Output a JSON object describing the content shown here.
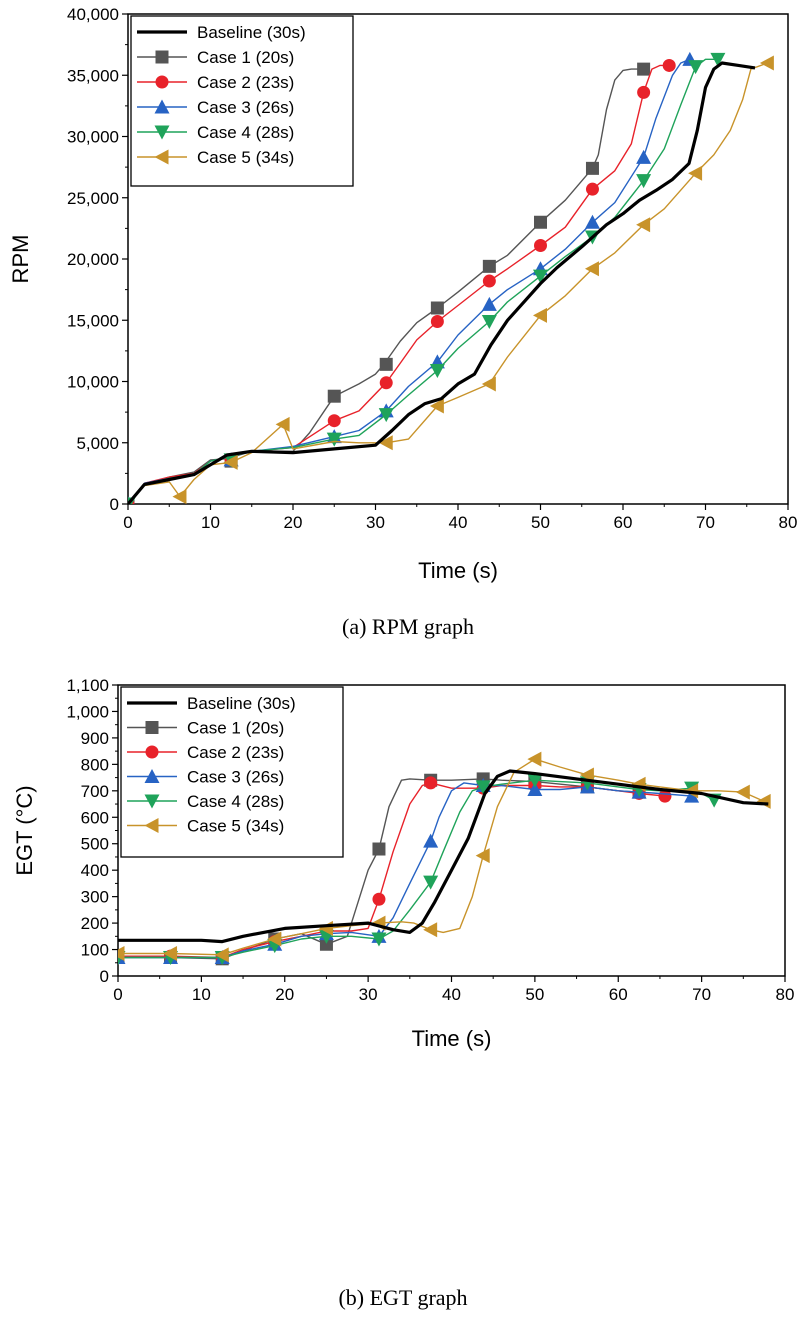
{
  "captions": [
    "(a)  RPM  graph",
    "(b)  EGT  graph"
  ],
  "chart_data": [
    {
      "type": "line",
      "xlabel": "Time (s)",
      "ylabel": "RPM",
      "xlim": [
        0,
        80
      ],
      "ylim": [
        0,
        40000
      ],
      "xticks": [
        0,
        10,
        20,
        30,
        40,
        50,
        60,
        70,
        80
      ],
      "xtick_labels": [
        "0",
        "10",
        "20",
        "30",
        "40",
        "50",
        "60",
        "70",
        "80"
      ],
      "yticks": [
        0,
        5000,
        10000,
        15000,
        20000,
        25000,
        30000,
        35000,
        40000
      ],
      "ytick_labels": [
        "0",
        "5,000",
        "10,000",
        "15,000",
        "20,000",
        "25,000",
        "30,000",
        "35,000",
        "40,000"
      ],
      "grid": false,
      "legend_position": "top-left",
      "series": [
        {
          "name": "Baseline (30s)",
          "color": "#000000",
          "marker": "none",
          "x": [
            0,
            2,
            5,
            8,
            10,
            12,
            15,
            20,
            25,
            30,
            32,
            34,
            36,
            38,
            40,
            42,
            44,
            46,
            48,
            50,
            52,
            55,
            58,
            60,
            62,
            64,
            66,
            68,
            69,
            70,
            71,
            72,
            74,
            76
          ],
          "y": [
            0,
            1600,
            2000,
            2400,
            3200,
            4000,
            4300,
            4200,
            4500,
            4800,
            6000,
            7300,
            8200,
            8600,
            9800,
            10600,
            13000,
            15000,
            16500,
            18000,
            19300,
            21000,
            22800,
            23700,
            24800,
            25600,
            26500,
            27800,
            30500,
            34000,
            35500,
            36000,
            35800,
            35600
          ]
        },
        {
          "name": "Case 1 (20s)",
          "color": "#555555",
          "marker": "square",
          "x": [
            0,
            2,
            5,
            8,
            10,
            12,
            15,
            20,
            22,
            25,
            28,
            30,
            31,
            33,
            35,
            37.5,
            40,
            43.8,
            46,
            50,
            53,
            56.3,
            57,
            58,
            59,
            60,
            61,
            62.5
          ],
          "y": [
            0,
            1600,
            2200,
            2600,
            3600,
            3700,
            4300,
            4300,
            5800,
            8800,
            9800,
            10600,
            11400,
            13300,
            14800,
            16000,
            17300,
            19400,
            20300,
            23000,
            24800,
            27400,
            28500,
            32200,
            34600,
            35400,
            35500,
            35500
          ],
          "marker_x": [
            0,
            12.5,
            25,
            31.3,
            37.5,
            43.8,
            50,
            56.3,
            62.5
          ],
          "marker_y": [
            0,
            3500,
            8800,
            11400,
            16000,
            19400,
            23000,
            27400,
            35500
          ]
        },
        {
          "name": "Case 2 (23s)",
          "color": "#e8222a",
          "marker": "circle",
          "x": [
            0,
            2,
            5,
            8,
            10,
            12,
            15,
            20,
            25,
            28,
            31.3,
            33,
            35,
            37.5,
            40,
            43.8,
            46,
            50,
            53,
            56.3,
            59,
            61,
            62.5,
            63.5,
            64.5,
            65.6
          ],
          "y": [
            0,
            1700,
            2200,
            2500,
            3500,
            3800,
            4300,
            4600,
            6800,
            7600,
            9900,
            11500,
            13400,
            14900,
            16200,
            18200,
            19200,
            21100,
            22600,
            25700,
            27200,
            29400,
            33600,
            35500,
            35800,
            35800
          ],
          "marker_x": [
            0,
            12.5,
            25,
            31.3,
            37.5,
            43.8,
            50,
            56.3,
            62.5,
            65.6
          ],
          "marker_y": [
            0,
            3600,
            6800,
            9900,
            14900,
            18200,
            21100,
            25700,
            33600,
            35800
          ]
        },
        {
          "name": "Case 3 (26s)",
          "color": "#2763c4",
          "marker": "triangle-up",
          "x": [
            0,
            2,
            5,
            8,
            10,
            12,
            15,
            20,
            25,
            28,
            31.3,
            34,
            37.5,
            40,
            43.8,
            46,
            50,
            53,
            56.3,
            59,
            62.5,
            64,
            66,
            67,
            68.1
          ],
          "y": [
            0,
            1700,
            2100,
            2400,
            3500,
            3800,
            4300,
            4700,
            5500,
            6000,
            7600,
            9600,
            11600,
            13800,
            16300,
            17500,
            19200,
            20800,
            23000,
            24600,
            28300,
            31500,
            35000,
            36000,
            36300
          ],
          "marker_x": [
            0,
            12.5,
            25,
            31.3,
            37.5,
            43.8,
            50,
            56.3,
            62.5,
            68.1
          ],
          "marker_y": [
            0,
            3600,
            5500,
            7600,
            11600,
            16300,
            19200,
            23000,
            28300,
            36300
          ]
        },
        {
          "name": "Case 4 (28s)",
          "color": "#1fa35a",
          "marker": "triangle-down",
          "x": [
            0,
            2,
            5,
            8,
            10,
            12,
            15,
            20,
            25,
            28,
            31.3,
            34,
            37.5,
            40,
            43.8,
            46,
            50,
            53,
            56.3,
            59,
            62.5,
            65,
            67,
            68.8,
            70,
            71.5
          ],
          "y": [
            0,
            1600,
            2100,
            2400,
            3500,
            3800,
            4300,
            4600,
            5300,
            5600,
            7300,
            8900,
            10900,
            12700,
            14900,
            16500,
            18600,
            20200,
            21800,
            23400,
            26400,
            29000,
            32600,
            35700,
            36300,
            36300
          ],
          "marker_x": [
            0,
            12.5,
            25,
            31.3,
            37.5,
            43.8,
            50,
            56.3,
            62.5,
            68.8,
            71.5
          ],
          "marker_y": [
            0,
            3600,
            5300,
            7300,
            10900,
            14900,
            18600,
            21800,
            26400,
            35700,
            36300
          ]
        },
        {
          "name": "Case 5 (34s)",
          "color": "#c8932a",
          "marker": "triangle-left",
          "x": [
            0,
            2,
            5,
            6.3,
            8,
            10,
            12.5,
            15,
            18.8,
            20,
            25,
            28,
            31.3,
            34,
            37.5,
            40,
            43.8,
            46,
            50,
            53,
            56.3,
            59,
            62.5,
            65,
            68.8,
            71,
            73,
            74.5,
            75.5,
            77.5
          ],
          "y": [
            0,
            1500,
            1800,
            600,
            2000,
            3200,
            3400,
            4200,
            6500,
            4500,
            5100,
            5000,
            5000,
            5300,
            8000,
            8700,
            9800,
            12000,
            15400,
            17000,
            19200,
            20500,
            22800,
            24100,
            27000,
            28500,
            30500,
            33000,
            35500,
            36000
          ],
          "marker_x": [
            6.3,
            12.5,
            18.8,
            31.3,
            37.5,
            43.8,
            50,
            56.3,
            62.5,
            68.8,
            77.5
          ],
          "marker_y": [
            600,
            3400,
            6500,
            5000,
            8000,
            9800,
            15400,
            19200,
            22800,
            27000,
            36000
          ]
        }
      ]
    },
    {
      "type": "line",
      "xlabel": "Time (s)",
      "ylabel": "EGT (°C)",
      "xlim": [
        0,
        80
      ],
      "ylim": [
        0,
        1100
      ],
      "xticks": [
        0,
        10,
        20,
        30,
        40,
        50,
        60,
        70,
        80
      ],
      "xtick_labels": [
        "0",
        "10",
        "20",
        "30",
        "40",
        "50",
        "60",
        "70",
        "80"
      ],
      "yticks": [
        0,
        100,
        200,
        300,
        400,
        500,
        600,
        700,
        800,
        900,
        1000,
        1100
      ],
      "ytick_labels": [
        "0",
        "100",
        "200",
        "300",
        "400",
        "500",
        "600",
        "700",
        "800",
        "900",
        "1,000",
        "1,100"
      ],
      "grid": false,
      "legend_position": "top-left",
      "series": [
        {
          "name": "Baseline (30s)",
          "color": "#000000",
          "marker": "none",
          "x": [
            0,
            5,
            10,
            12.5,
            15,
            20,
            25,
            30,
            33,
            35,
            36.5,
            38,
            40,
            42,
            44,
            45.5,
            47,
            50,
            55,
            60,
            65,
            70,
            75,
            78
          ],
          "y": [
            135,
            135,
            135,
            130,
            150,
            180,
            190,
            200,
            175,
            165,
            200,
            280,
            400,
            520,
            690,
            755,
            775,
            765,
            745,
            725,
            705,
            690,
            655,
            650
          ]
        },
        {
          "name": "Case 1 (20s)",
          "color": "#555555",
          "marker": "square",
          "x": [
            0,
            6.3,
            12.5,
            15,
            18.8,
            22,
            25,
            27.5,
            29,
            30,
            31.3,
            32.5,
            34,
            35,
            37.5,
            40,
            43.8,
            46,
            50,
            56.3,
            60,
            62.5
          ],
          "y": [
            70,
            70,
            65,
            95,
            140,
            160,
            120,
            150,
            300,
            400,
            480,
            640,
            740,
            745,
            740,
            740,
            745,
            740,
            735,
            715,
            700,
            695
          ],
          "marker_x": [
            0,
            6.3,
            12.5,
            18.8,
            25,
            31.3,
            37.5,
            43.8,
            50,
            56.3,
            62.5
          ],
          "marker_y": [
            70,
            70,
            65,
            140,
            120,
            480,
            740,
            745,
            735,
            715,
            695
          ]
        },
        {
          "name": "Case 2 (23s)",
          "color": "#e8222a",
          "marker": "circle",
          "x": [
            0,
            6.3,
            12.5,
            15,
            18.8,
            22,
            25,
            28,
            30,
            31.3,
            33,
            35,
            36.5,
            37.5,
            40,
            43.8,
            46,
            50,
            53,
            56.3,
            60,
            62.5,
            65.6
          ],
          "y": [
            75,
            75,
            70,
            100,
            130,
            150,
            170,
            170,
            180,
            290,
            470,
            650,
            720,
            730,
            710,
            710,
            720,
            720,
            715,
            715,
            700,
            690,
            680
          ],
          "marker_x": [
            0,
            6.3,
            12.5,
            18.8,
            25,
            31.3,
            37.5,
            43.8,
            50,
            56.3,
            62.5,
            65.6
          ],
          "marker_y": [
            75,
            75,
            70,
            130,
            170,
            290,
            730,
            710,
            720,
            715,
            690,
            680
          ]
        },
        {
          "name": "Case 3 (26s)",
          "color": "#2763c4",
          "marker": "triangle-up",
          "x": [
            0,
            6.3,
            12.5,
            15,
            18.8,
            22,
            25,
            28,
            31.3,
            33,
            35,
            37.5,
            38.5,
            40,
            41.5,
            43.8,
            46,
            50,
            53,
            56.3,
            60,
            62.5,
            65,
            68.8
          ],
          "y": [
            70,
            70,
            70,
            95,
            120,
            150,
            160,
            165,
            150,
            220,
            350,
            510,
            600,
            700,
            730,
            720,
            720,
            705,
            705,
            715,
            700,
            695,
            690,
            680
          ],
          "marker_x": [
            0,
            6.3,
            12.5,
            18.8,
            25,
            31.3,
            37.5,
            43.8,
            50,
            56.3,
            62.5,
            68.8
          ],
          "marker_y": [
            70,
            70,
            70,
            120,
            160,
            150,
            510,
            720,
            705,
            715,
            695,
            680
          ]
        },
        {
          "name": "Case 4 (28s)",
          "color": "#1fa35a",
          "marker": "triangle-down",
          "x": [
            0,
            6.3,
            12.5,
            15,
            18.8,
            22,
            25,
            28,
            31.3,
            33,
            35,
            37.5,
            39,
            41,
            42.5,
            43.8,
            46,
            50,
            53,
            56.3,
            60,
            62.5,
            65,
            68.8,
            71.5
          ],
          "y": [
            70,
            70,
            70,
            90,
            115,
            140,
            150,
            150,
            140,
            170,
            250,
            355,
            470,
            620,
            700,
            715,
            725,
            740,
            735,
            730,
            715,
            705,
            700,
            710,
            665
          ],
          "marker_x": [
            0,
            6.3,
            12.5,
            18.8,
            25,
            31.3,
            37.5,
            43.8,
            50,
            56.3,
            62.5,
            68.8,
            71.5
          ],
          "marker_y": [
            70,
            70,
            70,
            115,
            150,
            140,
            355,
            715,
            740,
            730,
            705,
            710,
            665
          ]
        },
        {
          "name": "Case 5 (34s)",
          "color": "#c8932a",
          "marker": "triangle-left",
          "x": [
            0,
            6.3,
            12.5,
            15,
            18.8,
            22,
            25,
            28,
            31.3,
            34,
            35.5,
            37.5,
            39,
            41,
            42.5,
            43.8,
            45.5,
            47.5,
            50,
            53,
            56.3,
            60,
            62.5,
            65,
            68.8,
            72,
            75,
            77.5
          ],
          "y": [
            85,
            85,
            80,
            105,
            140,
            160,
            180,
            190,
            200,
            205,
            200,
            175,
            165,
            180,
            300,
            455,
            640,
            770,
            820,
            790,
            760,
            740,
            725,
            715,
            700,
            700,
            695,
            660
          ],
          "marker_x": [
            0,
            6.3,
            12.5,
            18.8,
            25,
            31.3,
            37.5,
            43.8,
            50,
            56.3,
            62.5,
            68.8,
            75,
            77.5
          ],
          "marker_y": [
            85,
            85,
            80,
            140,
            180,
            200,
            175,
            455,
            820,
            760,
            725,
            700,
            695,
            660
          ]
        }
      ]
    }
  ]
}
